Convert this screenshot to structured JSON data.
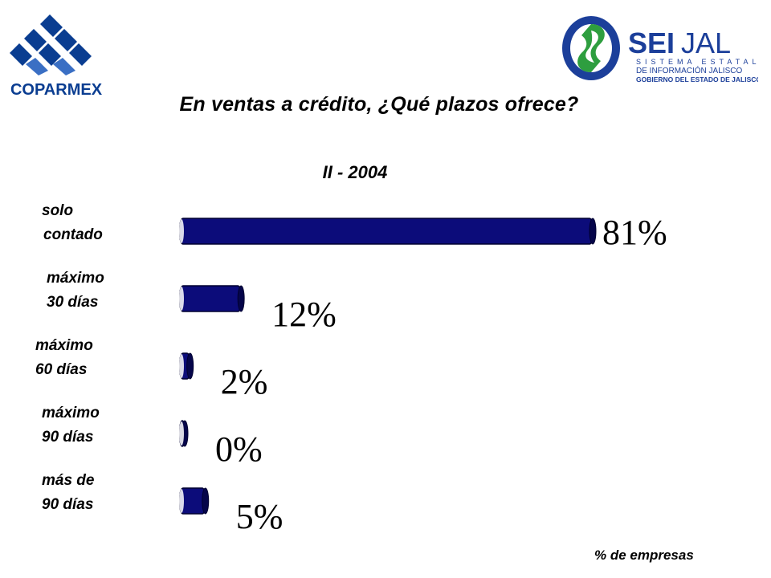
{
  "header": {
    "left_logo": {
      "icon": "coparmex-logo",
      "text": "COPARMEX"
    },
    "right_logo": {
      "icon": "seijal-logo",
      "brand_bold": "SEI",
      "brand_light": "JAL",
      "line1": "SISTEMA ESTATAL",
      "line2": "DE INFORMACIÓN JALISCO",
      "line3": "GOBIERNO DEL ESTADO DE JALISCO"
    }
  },
  "colors": {
    "bar": "#0c0c7a",
    "bar_dark": "#05054a",
    "coparmex_blue": "#0a3d91",
    "seijal_green": "#2e9e3f",
    "seijal_blue": "#1c3f9a"
  },
  "chart_data": {
    "type": "bar",
    "orientation": "horizontal",
    "title": "En ventas a crédito, ¿Qué plazos ofrece?",
    "subtitle": "II - 2004",
    "categories": [
      [
        "solo",
        "contado"
      ],
      [
        "máximo",
        "30 días"
      ],
      [
        "máximo",
        "60 días"
      ],
      [
        "máximo",
        "90 días"
      ],
      [
        "más de",
        "90 días"
      ]
    ],
    "values": [
      81,
      12,
      2,
      0,
      5
    ],
    "value_labels": [
      "81%",
      "12%",
      "2%",
      "0%",
      "5%"
    ],
    "xlim": [
      0,
      81
    ],
    "unit_label": "% de empresas",
    "grid": false,
    "legend": "none"
  }
}
